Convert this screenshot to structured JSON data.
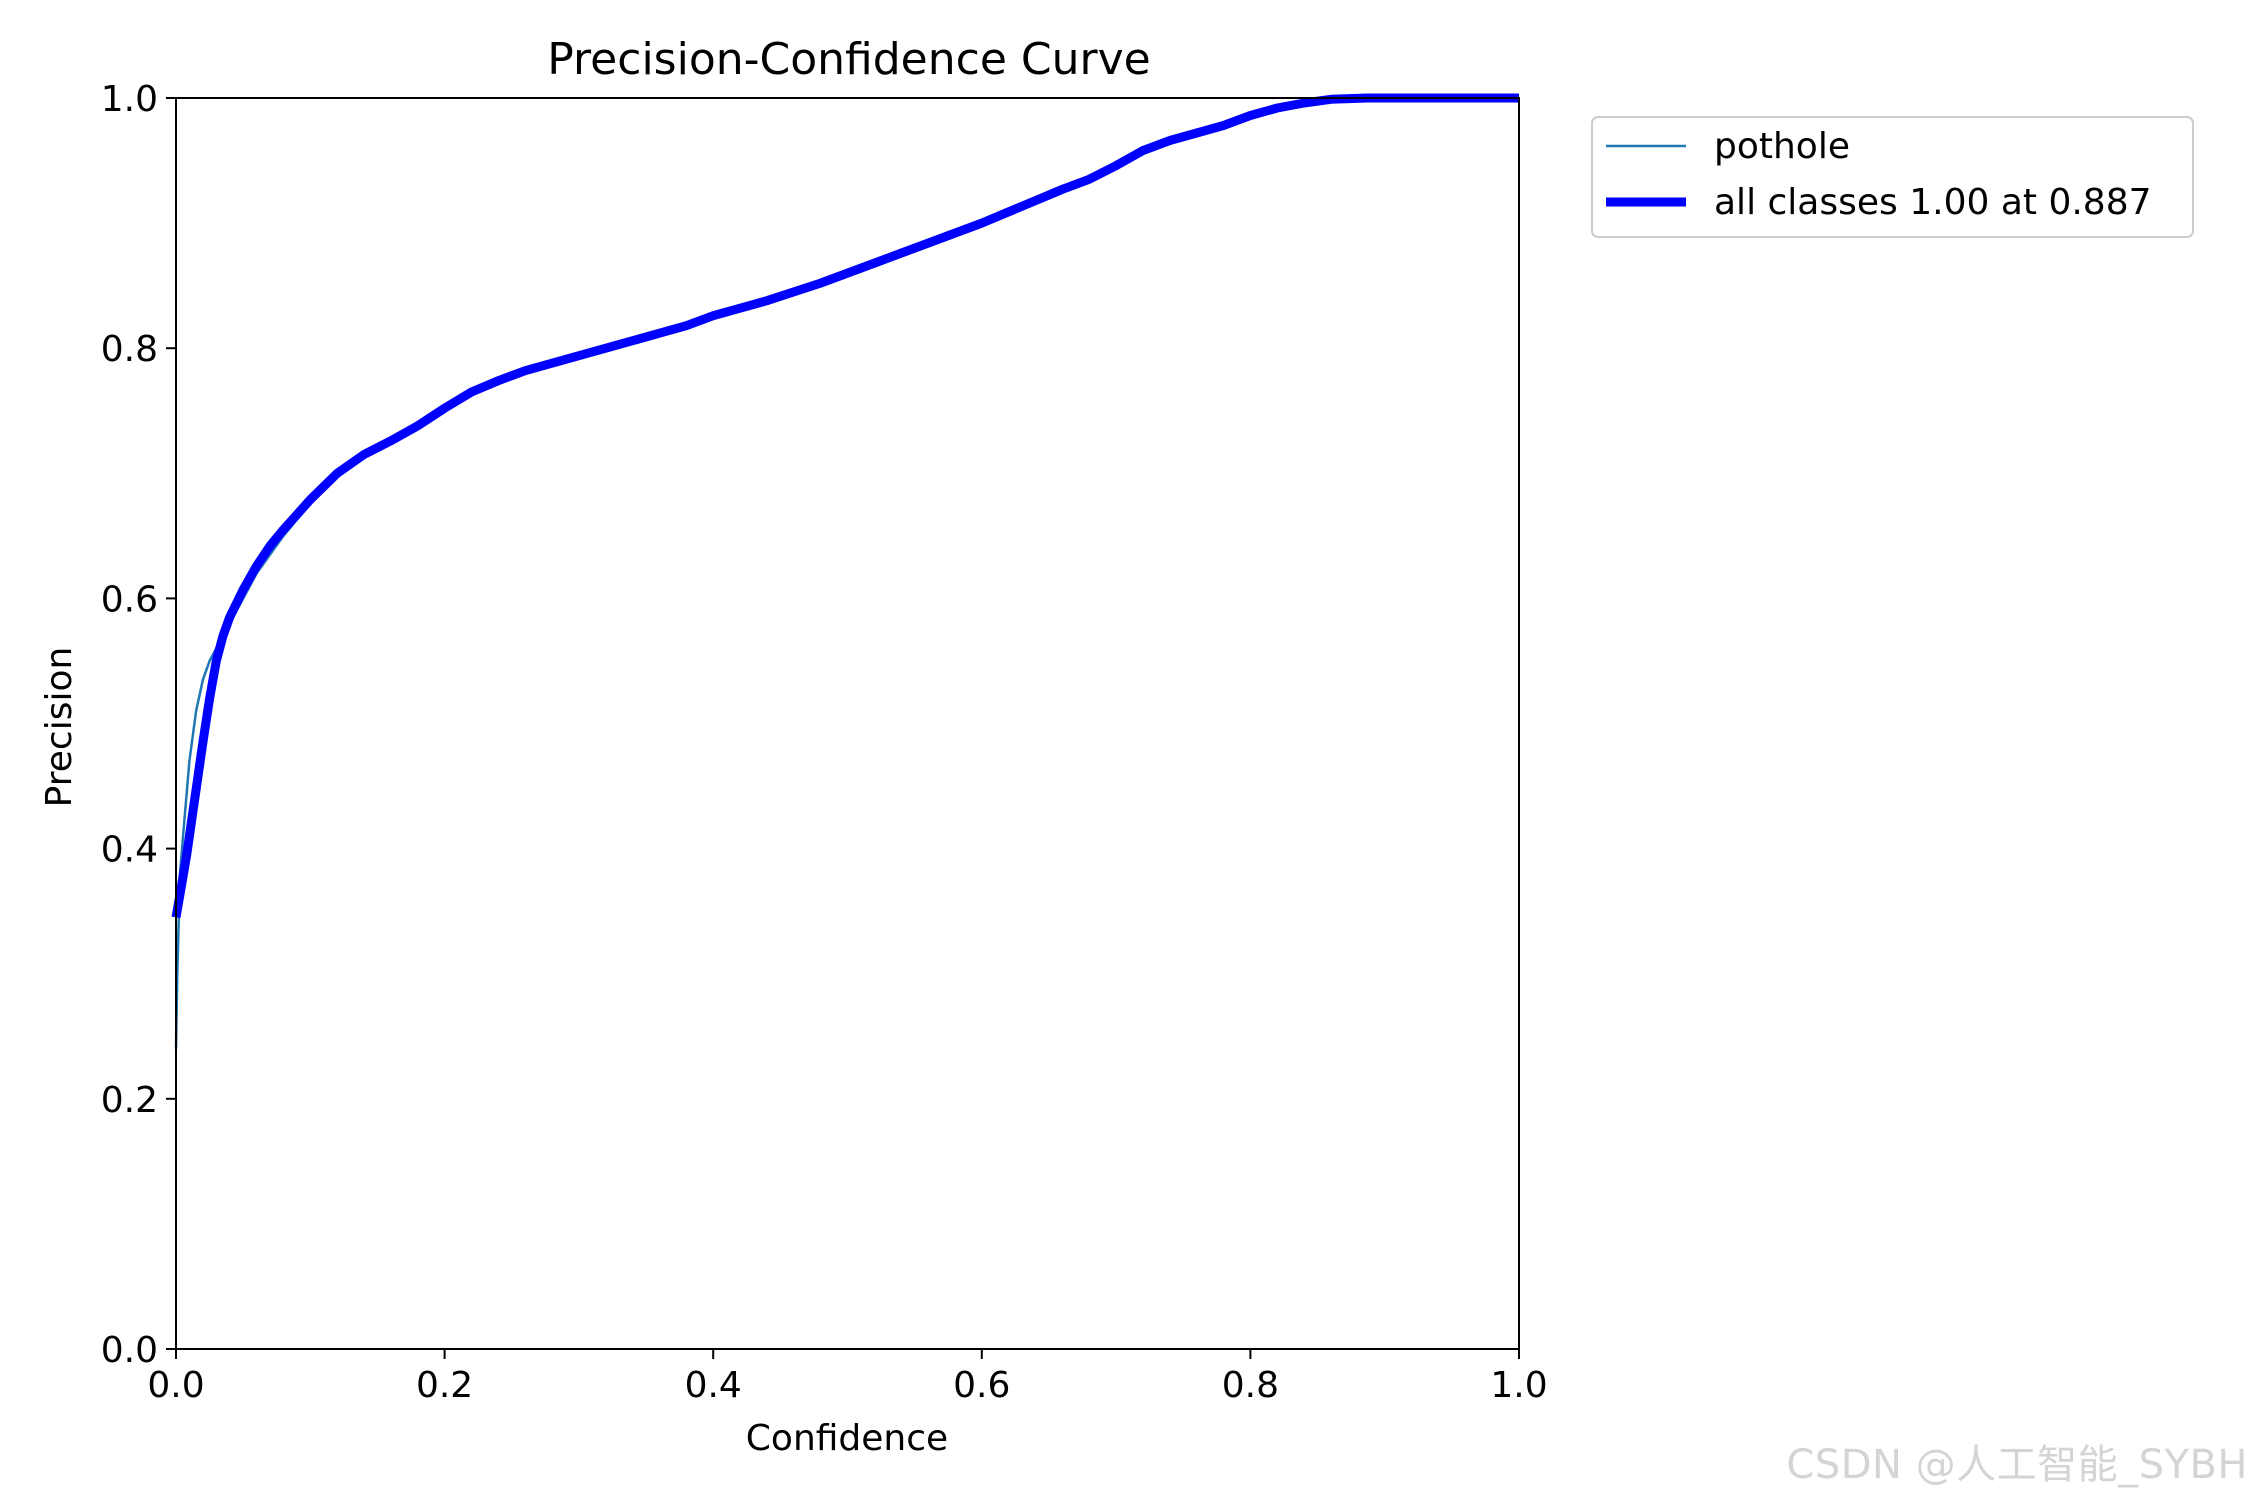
{
  "chart_data": {
    "type": "line",
    "title": "Precision-Confidence Curve",
    "xlabel": "Confidence",
    "ylabel": "Precision",
    "xlim": [
      0,
      1
    ],
    "ylim": [
      0,
      1
    ],
    "xticks": [
      "0.0",
      "0.2",
      "0.4",
      "0.6",
      "0.8",
      "1.0"
    ],
    "yticks": [
      "0.0",
      "0.2",
      "0.4",
      "0.6",
      "0.8",
      "1.0"
    ],
    "grid": false,
    "legend_position": "outside-top-right",
    "series": [
      {
        "name": "pothole",
        "color": "#1f77b4",
        "line": "thin",
        "x": [
          0.0,
          0.001,
          0.003,
          0.006,
          0.01,
          0.015,
          0.02,
          0.025,
          0.03,
          0.035,
          0.04,
          0.05,
          0.06,
          0.07,
          0.08,
          0.09,
          0.1,
          0.12,
          0.14,
          0.16,
          0.18,
          0.2,
          0.22,
          0.24,
          0.26,
          0.28,
          0.3,
          0.32,
          0.34,
          0.36,
          0.38,
          0.4,
          0.42,
          0.44,
          0.46,
          0.48,
          0.5,
          0.52,
          0.54,
          0.56,
          0.58,
          0.6,
          0.62,
          0.64,
          0.66,
          0.68,
          0.7,
          0.72,
          0.74,
          0.76,
          0.78,
          0.8,
          0.82,
          0.84,
          0.86,
          0.88,
          0.9,
          0.95,
          1.0
        ],
        "y": [
          0.24,
          0.3,
          0.38,
          0.42,
          0.47,
          0.51,
          0.535,
          0.55,
          0.56,
          0.57,
          0.58,
          0.6,
          0.62,
          0.635,
          0.65,
          0.663,
          0.676,
          0.698,
          0.714,
          0.725,
          0.738,
          0.752,
          0.765,
          0.774,
          0.782,
          0.788,
          0.794,
          0.8,
          0.806,
          0.812,
          0.818,
          0.826,
          0.832,
          0.838,
          0.845,
          0.852,
          0.86,
          0.868,
          0.876,
          0.884,
          0.892,
          0.9,
          0.909,
          0.918,
          0.927,
          0.935,
          0.946,
          0.958,
          0.966,
          0.972,
          0.978,
          0.986,
          0.992,
          0.996,
          0.999,
          1.0,
          1.0,
          1.0,
          1.0
        ]
      },
      {
        "name": "all classes 1.00 at 0.887",
        "color": "#0000ff",
        "line": "thick",
        "x": [
          0.0,
          0.004,
          0.008,
          0.012,
          0.016,
          0.02,
          0.025,
          0.03,
          0.035,
          0.04,
          0.05,
          0.06,
          0.07,
          0.08,
          0.09,
          0.1,
          0.12,
          0.14,
          0.16,
          0.18,
          0.2,
          0.22,
          0.24,
          0.26,
          0.28,
          0.3,
          0.32,
          0.34,
          0.36,
          0.38,
          0.4,
          0.42,
          0.44,
          0.46,
          0.48,
          0.5,
          0.52,
          0.54,
          0.56,
          0.58,
          0.6,
          0.62,
          0.64,
          0.66,
          0.68,
          0.7,
          0.72,
          0.74,
          0.76,
          0.78,
          0.8,
          0.82,
          0.84,
          0.86,
          0.887,
          0.9,
          0.95,
          1.0
        ],
        "y": [
          0.345,
          0.37,
          0.395,
          0.425,
          0.455,
          0.485,
          0.52,
          0.55,
          0.57,
          0.585,
          0.607,
          0.626,
          0.642,
          0.655,
          0.667,
          0.679,
          0.7,
          0.715,
          0.726,
          0.738,
          0.752,
          0.765,
          0.774,
          0.782,
          0.788,
          0.794,
          0.8,
          0.806,
          0.812,
          0.818,
          0.826,
          0.832,
          0.838,
          0.845,
          0.852,
          0.86,
          0.868,
          0.876,
          0.884,
          0.892,
          0.9,
          0.909,
          0.918,
          0.927,
          0.935,
          0.946,
          0.958,
          0.966,
          0.972,
          0.978,
          0.986,
          0.992,
          0.996,
          0.999,
          1.0,
          1.0,
          1.0,
          1.0
        ]
      }
    ]
  },
  "watermark": "CSDN @人工智能_SYBH"
}
